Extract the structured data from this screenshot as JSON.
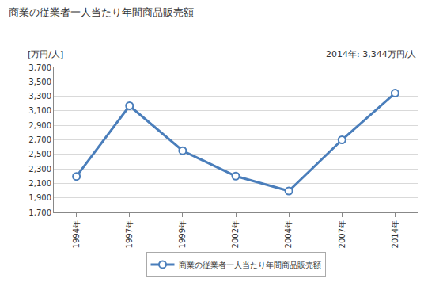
{
  "chart_data": {
    "type": "line",
    "title": "商業の従業者一人当たり年間商品販売額",
    "y_label": "[万円/人]",
    "annotations": [
      "2014年: 3,344万円/人"
    ],
    "categories": [
      "1994年",
      "1997年",
      "1999年",
      "2002年",
      "2004年",
      "2007年",
      "2014年"
    ],
    "series": [
      {
        "name": "商業の従業者一人当たり年間商品販売額",
        "color": "#4a7ebb",
        "marker": "circle",
        "values": [
          2195,
          3170,
          2550,
          2200,
          1995,
          2700,
          3344
        ]
      }
    ],
    "ylim": [
      1700,
      3700
    ],
    "yticks": [
      {
        "value": 1700,
        "label": "1,700"
      },
      {
        "value": 1900,
        "label": "1,900"
      },
      {
        "value": 2100,
        "label": "2,100"
      },
      {
        "value": 2300,
        "label": "2,300"
      },
      {
        "value": 2500,
        "label": "2,500"
      },
      {
        "value": 2700,
        "label": "2,700"
      },
      {
        "value": 2900,
        "label": "2,900"
      },
      {
        "value": 3100,
        "label": "3,100"
      },
      {
        "value": 3300,
        "label": "3,300"
      },
      {
        "value": 3500,
        "label": "3,500"
      },
      {
        "value": 3700,
        "label": "3,700"
      }
    ],
    "grid": true,
    "legend": "bottom"
  }
}
